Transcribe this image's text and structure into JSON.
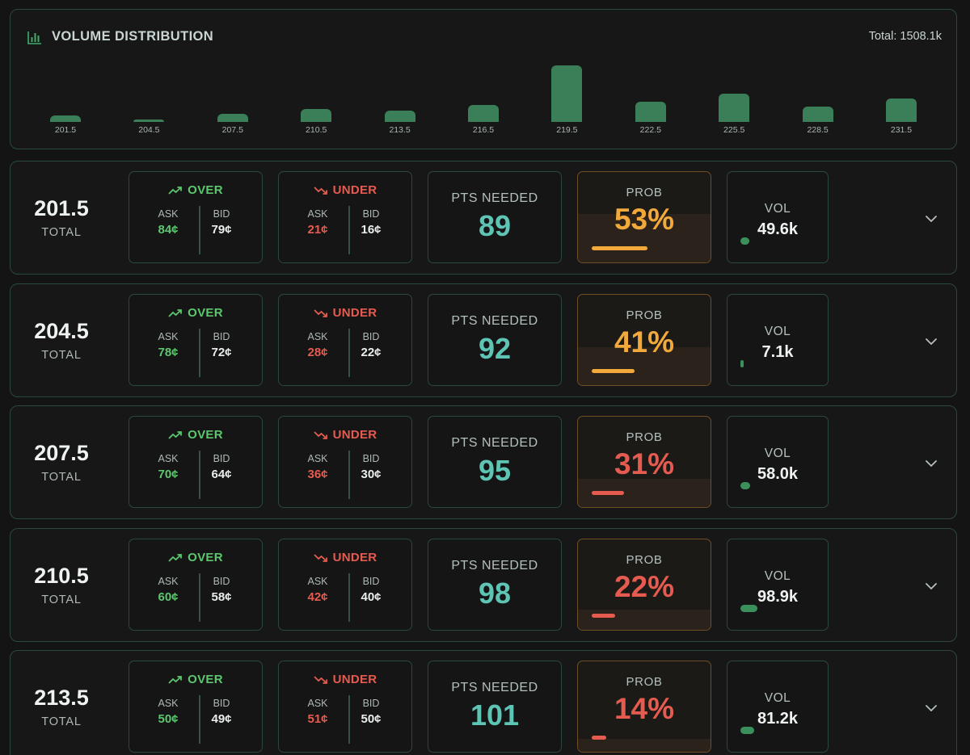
{
  "distribution": {
    "title": "VOLUME DISTRIBUTION",
    "total_label": "Total: 1508.1k",
    "icon": "bar-chart-icon",
    "bar_color": "#3b7f58",
    "buckets": [
      {
        "label": "201.5",
        "volume": 49.6
      },
      {
        "label": "204.5",
        "volume": 7.1
      },
      {
        "label": "207.5",
        "volume": 58.0
      },
      {
        "label": "210.5",
        "volume": 98.9
      },
      {
        "label": "213.5",
        "volume": 81.2
      },
      {
        "label": "216.5",
        "volume": 124.0
      },
      {
        "label": "219.5",
        "volume": 420.0
      },
      {
        "label": "222.5",
        "volume": 148.0
      },
      {
        "label": "225.5",
        "volume": 207.0
      },
      {
        "label": "228.5",
        "volume": 113.0
      },
      {
        "label": "231.5",
        "volume": 171.0
      }
    ]
  },
  "labels": {
    "total": "TOTAL",
    "over": "OVER",
    "under": "UNDER",
    "ask": "ASK",
    "bid": "BID",
    "pts_needed": "PTS NEEDED",
    "prob": "PROB",
    "vol": "VOL"
  },
  "colors": {
    "green": "#5cc76f",
    "red": "#e65b4f",
    "orange": "#f2a93b",
    "teal": "#5ec4b4",
    "vol_bar": "#3b8f5a"
  },
  "rows": [
    {
      "total": "201.5",
      "over_ask": "84¢",
      "over_bid": "79¢",
      "under_ask": "21¢",
      "under_bid": "16¢",
      "pts_needed": "89",
      "prob": "53%",
      "prob_value": 0.53,
      "prob_level": "orange",
      "vol": "49.6k",
      "vol_value": 49.6
    },
    {
      "total": "204.5",
      "over_ask": "78¢",
      "over_bid": "72¢",
      "under_ask": "28¢",
      "under_bid": "22¢",
      "pts_needed": "92",
      "prob": "41%",
      "prob_value": 0.41,
      "prob_level": "orange",
      "vol": "7.1k",
      "vol_value": 7.1
    },
    {
      "total": "207.5",
      "over_ask": "70¢",
      "over_bid": "64¢",
      "under_ask": "36¢",
      "under_bid": "30¢",
      "pts_needed": "95",
      "prob": "31%",
      "prob_value": 0.31,
      "prob_level": "red",
      "vol": "58.0k",
      "vol_value": 58.0
    },
    {
      "total": "210.5",
      "over_ask": "60¢",
      "over_bid": "58¢",
      "under_ask": "42¢",
      "under_bid": "40¢",
      "pts_needed": "98",
      "prob": "22%",
      "prob_value": 0.22,
      "prob_level": "red",
      "vol": "98.9k",
      "vol_value": 98.9
    },
    {
      "total": "213.5",
      "over_ask": "50¢",
      "over_bid": "49¢",
      "under_ask": "51¢",
      "under_bid": "50¢",
      "pts_needed": "101",
      "prob": "14%",
      "prob_value": 0.14,
      "prob_level": "red",
      "vol": "81.2k",
      "vol_value": 81.2
    }
  ]
}
